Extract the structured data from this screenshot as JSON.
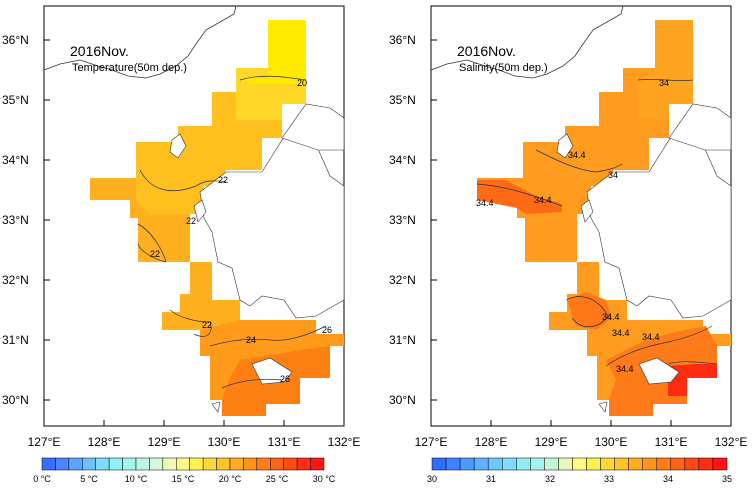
{
  "panels": [
    {
      "title": "2016Nov.",
      "subtitle": "Temperature(50m dep.)",
      "contour_labels": [
        "20",
        "22",
        "22",
        "22",
        "22",
        "24",
        "26",
        "26"
      ],
      "colorbar": {
        "tick_labels": [
          "0 °C",
          "5 °C",
          "10 °C",
          "15 °C",
          "20 °C",
          "25 °C",
          "30 °C"
        ],
        "range": [
          0,
          32
        ],
        "colors": [
          "#3a6cff",
          "#4b86ff",
          "#5ea3ff",
          "#6ec1ff",
          "#7fdcff",
          "#8ff0f6",
          "#a4f7ee",
          "#baf7e8",
          "#d6f8d6",
          "#eef8b8",
          "#fff98a",
          "#ffef55",
          "#ffd935",
          "#ffc428",
          "#ffad22",
          "#ff951e",
          "#ff7d1a",
          "#ff6418",
          "#ff4a16",
          "#ff2f14",
          "#ff1612"
        ]
      }
    },
    {
      "title": "2016Nov.",
      "subtitle": "Salinity(50m dep.)",
      "contour_labels": [
        "34",
        "34.4",
        "34",
        "34.4",
        "34.4",
        "34.4",
        "34.4",
        "34.4",
        "34.4"
      ],
      "colorbar": {
        "tick_labels": [
          "30",
          "31",
          "32",
          "33",
          "34",
          "35"
        ],
        "range": [
          30,
          35
        ],
        "colors": [
          "#2f6cff",
          "#3f82ff",
          "#4f98ff",
          "#5fb0ff",
          "#6fc8ff",
          "#7fdcff",
          "#90ecf6",
          "#a6f5ea",
          "#c8f7d8",
          "#e8f8b8",
          "#fffa80",
          "#ffef4f",
          "#ffd930",
          "#ffc326",
          "#ffac22",
          "#ff941e",
          "#ff7b1a",
          "#ff6218",
          "#ff4816",
          "#ff2d14",
          "#ff1412"
        ]
      }
    }
  ],
  "lat_labels": [
    "36°N",
    "35°N",
    "34°N",
    "33°N",
    "32°N",
    "31°N",
    "30°N"
  ],
  "lon_labels": [
    "127°E",
    "128°E",
    "129°E",
    "130°E",
    "131°E",
    "132°E"
  ],
  "field_colors": {
    "temperature": {
      "warm_north": "#ffe600",
      "mid": "#ffc21a",
      "south": "#ffa51a",
      "southmost": "#ff8a12"
    },
    "salinity": {
      "north": "#ff9a1e",
      "mid": "#ff8a1a",
      "high": "#ff6a16",
      "peak": "#ff2a12"
    }
  }
}
